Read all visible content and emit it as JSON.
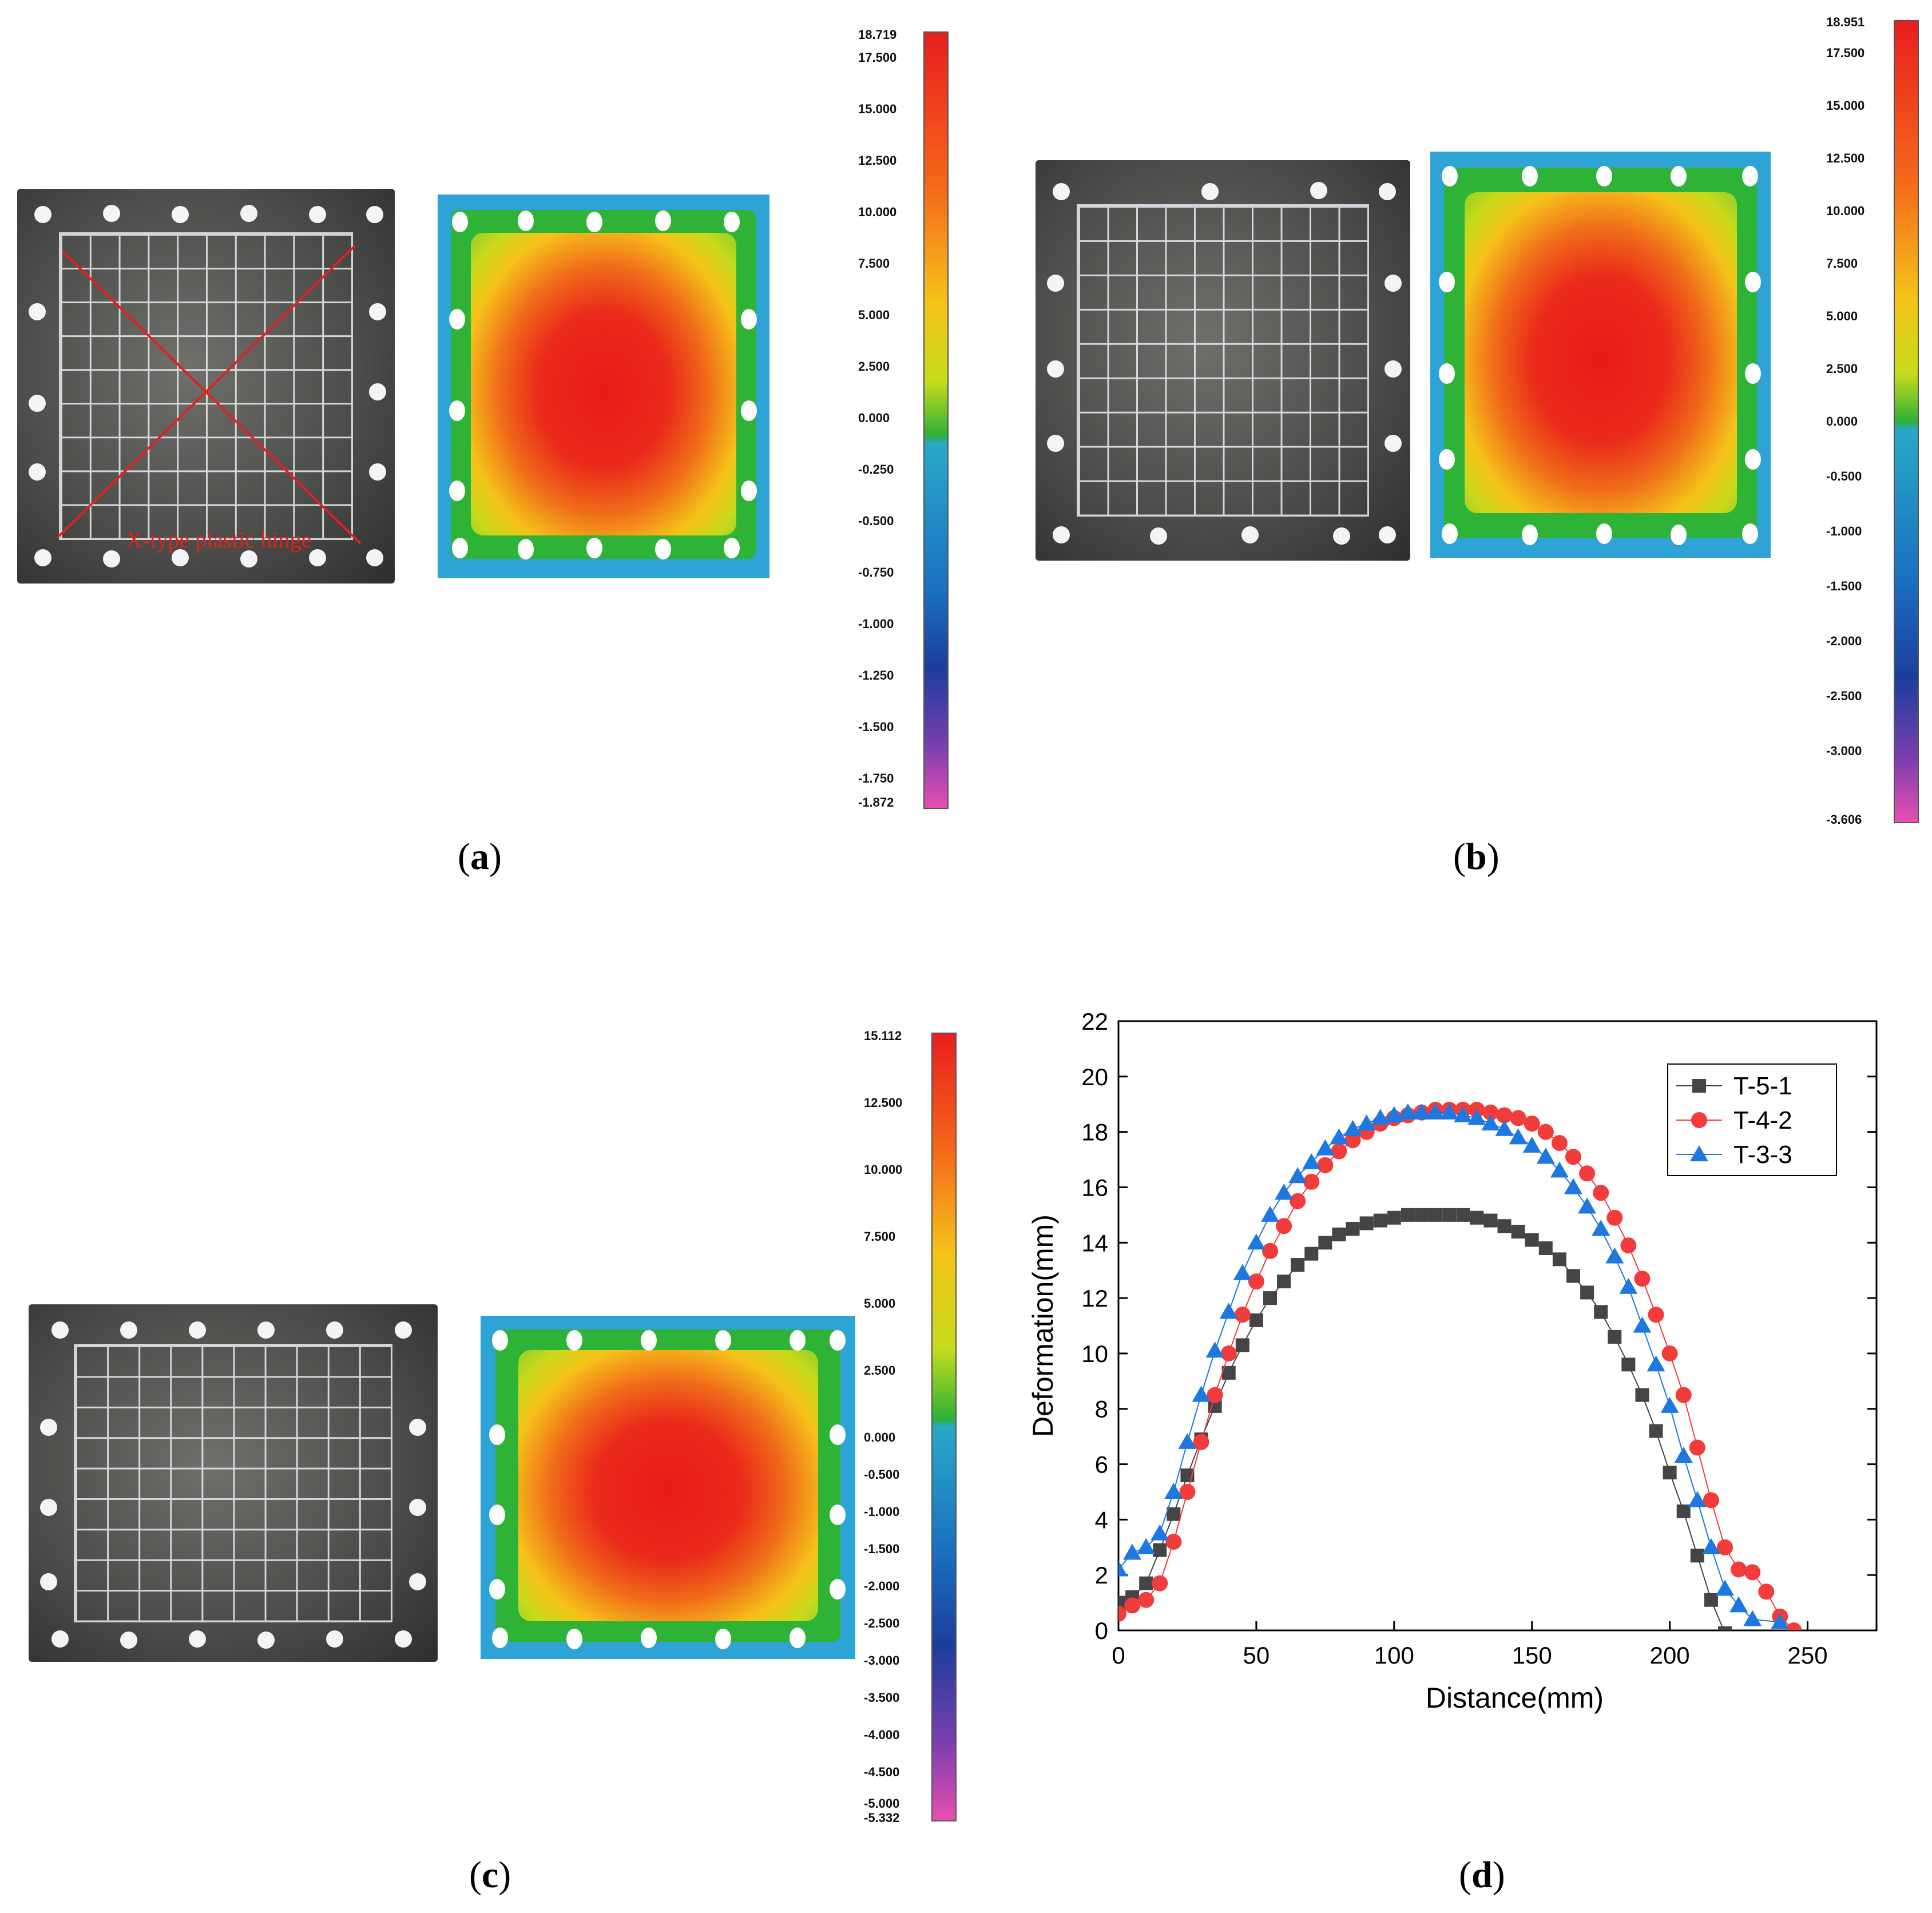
{
  "panels": [
    {
      "label": "a",
      "hinge_text": "X-type plastic hinge",
      "scale_ticks": [
        "18.719",
        "17.500",
        "15.000",
        "12.500",
        "10.000",
        "7.500",
        "5.000",
        "2.500",
        "0.000",
        "-0.250",
        "-0.500",
        "-0.750",
        "-1.000",
        "-1.250",
        "-1.500",
        "-1.750",
        "-1.872"
      ]
    },
    {
      "label": "b",
      "scale_ticks": [
        "18.951",
        "17.500",
        "15.000",
        "12.500",
        "10.000",
        "7.500",
        "5.000",
        "2.500",
        "0.000",
        "-0.500",
        "-1.000",
        "-1.500",
        "-2.000",
        "-2.500",
        "-3.000",
        "-3.606"
      ]
    },
    {
      "label": "c",
      "scale_ticks": [
        "15.112",
        "12.500",
        "10.000",
        "7.500",
        "5.000",
        "2.500",
        "0.000",
        "-0.500",
        "-1.000",
        "-1.500",
        "-2.000",
        "-2.500",
        "-3.000",
        "-3.500",
        "-4.000",
        "-4.500",
        "-5.000",
        "-5.332"
      ]
    },
    {
      "label": "d"
    }
  ],
  "colors": {
    "series": [
      "#444444",
      "#f23b3b",
      "#1f77e0"
    ],
    "axis": "#000000"
  },
  "chart_data": {
    "type": "scatter",
    "xlabel": "Distance(mm)",
    "ylabel": "Deformation(mm)",
    "xlim": [
      0,
      275
    ],
    "ylim": [
      0,
      22
    ],
    "xticks": [
      0,
      50,
      100,
      150,
      200,
      250
    ],
    "yticks": [
      0,
      2,
      4,
      6,
      8,
      10,
      12,
      14,
      16,
      18,
      20,
      22
    ],
    "legend_position": "top-right",
    "series": [
      {
        "name": "T-5-1",
        "marker": "square",
        "x": [
          0,
          5,
          10,
          15,
          20,
          25,
          30,
          35,
          40,
          45,
          50,
          55,
          60,
          65,
          70,
          75,
          80,
          85,
          90,
          95,
          100,
          105,
          110,
          115,
          120,
          125,
          130,
          135,
          140,
          145,
          150,
          155,
          160,
          165,
          170,
          175,
          180,
          185,
          190,
          195,
          200,
          205,
          210,
          215,
          220
        ],
        "y": [
          1.0,
          1.2,
          1.7,
          2.9,
          4.2,
          5.6,
          6.9,
          8.1,
          9.3,
          10.3,
          11.2,
          12.0,
          12.6,
          13.2,
          13.6,
          14.0,
          14.3,
          14.5,
          14.7,
          14.8,
          14.9,
          15.0,
          15.0,
          15.0,
          15.0,
          15.0,
          14.9,
          14.8,
          14.6,
          14.4,
          14.1,
          13.8,
          13.4,
          12.8,
          12.2,
          11.5,
          10.6,
          9.6,
          8.5,
          7.2,
          5.7,
          4.3,
          2.7,
          1.1,
          -0.1
        ]
      },
      {
        "name": "T-4-2",
        "marker": "circle",
        "x": [
          0,
          5,
          10,
          15,
          20,
          25,
          30,
          35,
          40,
          45,
          50,
          55,
          60,
          65,
          70,
          75,
          80,
          85,
          90,
          95,
          100,
          105,
          110,
          115,
          120,
          125,
          130,
          135,
          140,
          145,
          150,
          155,
          160,
          165,
          170,
          175,
          180,
          185,
          190,
          195,
          200,
          205,
          210,
          215,
          220,
          225,
          230,
          235,
          240,
          245
        ],
        "y": [
          0.6,
          0.9,
          1.1,
          1.7,
          3.2,
          5.0,
          6.8,
          8.5,
          10.0,
          11.4,
          12.6,
          13.7,
          14.6,
          15.5,
          16.2,
          16.8,
          17.3,
          17.7,
          18.0,
          18.3,
          18.5,
          18.6,
          18.7,
          18.8,
          18.8,
          18.8,
          18.8,
          18.7,
          18.6,
          18.5,
          18.3,
          18.0,
          17.6,
          17.1,
          16.5,
          15.8,
          14.9,
          13.9,
          12.7,
          11.4,
          10.0,
          8.5,
          6.6,
          4.7,
          3.0,
          2.2,
          2.1,
          1.4,
          0.5,
          0.0
        ]
      },
      {
        "name": "T-3-3",
        "marker": "triangle",
        "x": [
          0,
          5,
          10,
          15,
          20,
          25,
          30,
          35,
          40,
          45,
          50,
          55,
          60,
          65,
          70,
          75,
          80,
          85,
          90,
          95,
          100,
          105,
          110,
          115,
          120,
          125,
          130,
          135,
          140,
          145,
          150,
          155,
          160,
          165,
          170,
          175,
          180,
          185,
          190,
          195,
          200,
          205,
          210,
          215,
          220,
          225,
          230,
          240
        ],
        "y": [
          2.2,
          2.8,
          3.0,
          3.5,
          5.0,
          6.8,
          8.5,
          10.1,
          11.5,
          12.9,
          14.0,
          15.0,
          15.8,
          16.4,
          16.9,
          17.4,
          17.8,
          18.1,
          18.3,
          18.5,
          18.6,
          18.7,
          18.7,
          18.7,
          18.7,
          18.6,
          18.5,
          18.3,
          18.1,
          17.8,
          17.5,
          17.1,
          16.6,
          16.0,
          15.3,
          14.5,
          13.5,
          12.4,
          11.0,
          9.6,
          8.1,
          6.3,
          4.7,
          3.0,
          1.5,
          0.9,
          0.4,
          0.3
        ]
      }
    ]
  }
}
